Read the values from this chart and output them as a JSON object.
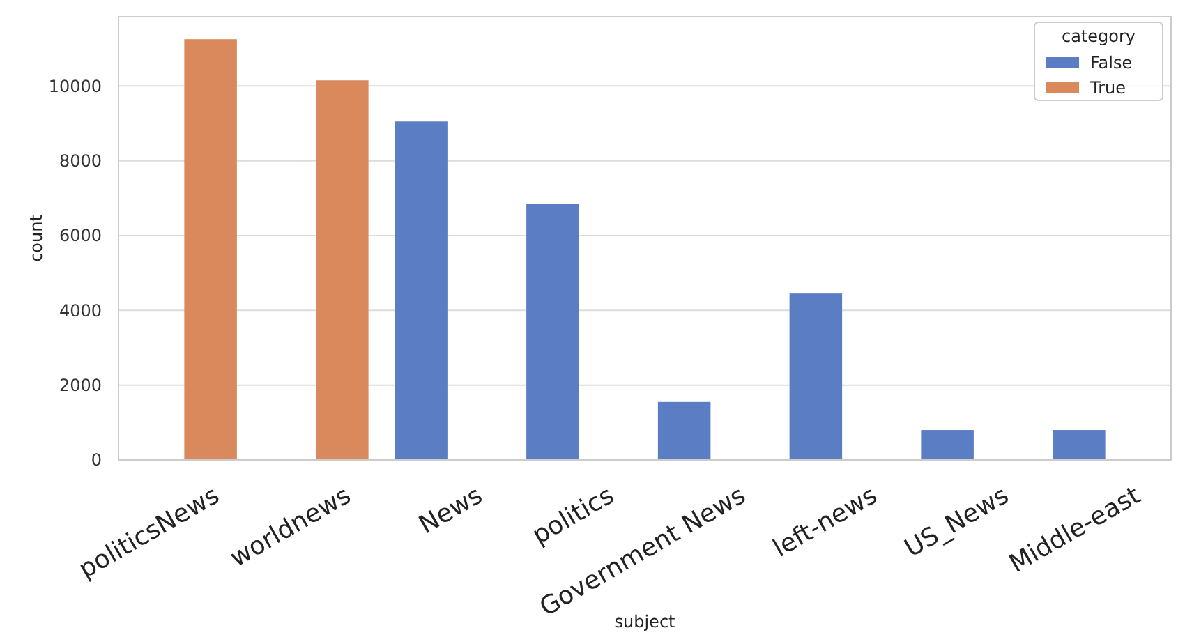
{
  "chart_data": {
    "type": "bar",
    "xlabel": "subject",
    "ylabel": "count",
    "legend_title": "category",
    "categories": [
      "politicsNews",
      "worldnews",
      "News",
      "politics",
      "Government News",
      "left-news",
      "US_News",
      "Middle-east"
    ],
    "series": [
      {
        "name": "False",
        "color": "#5a7dc4",
        "values": [
          null,
          null,
          9050,
          6850,
          1550,
          4450,
          800,
          800
        ]
      },
      {
        "name": "True",
        "color": "#d9895c",
        "values": [
          11250,
          10150,
          null,
          null,
          null,
          null,
          null,
          null
        ]
      }
    ],
    "ylim": [
      0,
      11850
    ],
    "yticks": [
      0,
      2000,
      4000,
      6000,
      8000,
      10000
    ],
    "grid": "y",
    "legend": "top right"
  }
}
